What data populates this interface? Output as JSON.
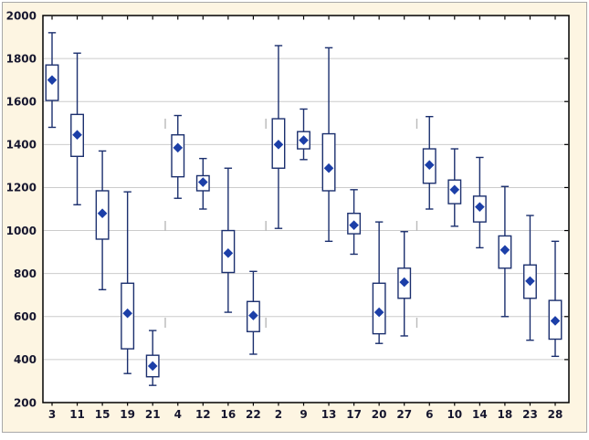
{
  "chart_data": {
    "type": "box",
    "categories": [
      "3",
      "11",
      "15",
      "19",
      "21",
      "4",
      "12",
      "16",
      "22",
      "2",
      "9",
      "13",
      "17",
      "20",
      "27",
      "6",
      "10",
      "14",
      "18",
      "23",
      "28"
    ],
    "series": [
      {
        "label": "3",
        "whisker_low": 1480,
        "q1": 1605,
        "mean": 1700,
        "q3": 1770,
        "whisker_high": 1920
      },
      {
        "label": "11",
        "whisker_low": 1120,
        "q1": 1345,
        "mean": 1445,
        "q3": 1540,
        "whisker_high": 1825
      },
      {
        "label": "15",
        "whisker_low": 725,
        "q1": 960,
        "mean": 1080,
        "q3": 1185,
        "whisker_high": 1370
      },
      {
        "label": "19",
        "whisker_low": 335,
        "q1": 450,
        "mean": 615,
        "q3": 755,
        "whisker_high": 1180
      },
      {
        "label": "21",
        "whisker_low": 280,
        "q1": 320,
        "mean": 370,
        "q3": 420,
        "whisker_high": 535
      },
      {
        "label": "4",
        "whisker_low": 1150,
        "q1": 1250,
        "mean": 1385,
        "q3": 1445,
        "whisker_high": 1535
      },
      {
        "label": "12",
        "whisker_low": 1100,
        "q1": 1185,
        "mean": 1225,
        "q3": 1255,
        "whisker_high": 1335
      },
      {
        "label": "16",
        "whisker_low": 620,
        "q1": 805,
        "mean": 895,
        "q3": 1000,
        "whisker_high": 1290
      },
      {
        "label": "22",
        "whisker_low": 425,
        "q1": 530,
        "mean": 605,
        "q3": 670,
        "whisker_high": 810
      },
      {
        "label": "2",
        "whisker_low": 1010,
        "q1": 1290,
        "mean": 1400,
        "q3": 1520,
        "whisker_high": 1860
      },
      {
        "label": "9",
        "whisker_low": 1330,
        "q1": 1380,
        "mean": 1420,
        "q3": 1460,
        "whisker_high": 1565
      },
      {
        "label": "13",
        "whisker_low": 950,
        "q1": 1185,
        "mean": 1290,
        "q3": 1450,
        "whisker_high": 1850
      },
      {
        "label": "17",
        "whisker_low": 890,
        "q1": 985,
        "mean": 1025,
        "q3": 1080,
        "whisker_high": 1190
      },
      {
        "label": "20",
        "whisker_low": 475,
        "q1": 520,
        "mean": 620,
        "q3": 755,
        "whisker_high": 1040
      },
      {
        "label": "27",
        "whisker_low": 510,
        "q1": 685,
        "mean": 760,
        "q3": 825,
        "whisker_high": 995
      },
      {
        "label": "6",
        "whisker_low": 1100,
        "q1": 1220,
        "mean": 1305,
        "q3": 1380,
        "whisker_high": 1530
      },
      {
        "label": "10",
        "whisker_low": 1020,
        "q1": 1125,
        "mean": 1190,
        "q3": 1235,
        "whisker_high": 1380
      },
      {
        "label": "14",
        "whisker_low": 920,
        "q1": 1040,
        "mean": 1110,
        "q3": 1160,
        "whisker_high": 1340
      },
      {
        "label": "18",
        "whisker_low": 600,
        "q1": 825,
        "mean": 910,
        "q3": 975,
        "whisker_high": 1205
      },
      {
        "label": "23",
        "whisker_low": 490,
        "q1": 685,
        "mean": 765,
        "q3": 840,
        "whisker_high": 1070
      },
      {
        "label": "28",
        "whisker_low": 415,
        "q1": 495,
        "mean": 580,
        "q3": 675,
        "whisker_high": 950
      }
    ],
    "ylim": [
      200,
      2000
    ],
    "ytick_step": 200,
    "ytick_labels": [
      "200",
      "400",
      "600",
      "800",
      "1000",
      "1200",
      "1400",
      "1600",
      "1800",
      "2000"
    ],
    "grid": "horizontal",
    "legend": "none",
    "group_separators_after_index": [
      4,
      8,
      14
    ],
    "colors": {
      "panel_bg": "#fdf5e2",
      "panel_border": "#a9a9a9",
      "plot_bg": "#ffffff",
      "axis": "#000000",
      "grid": "#cccccc",
      "box_stroke": "#1b2f6e",
      "marker": "#1c3fa8",
      "label": "#16162e",
      "separator": "#b9b9b9"
    }
  }
}
